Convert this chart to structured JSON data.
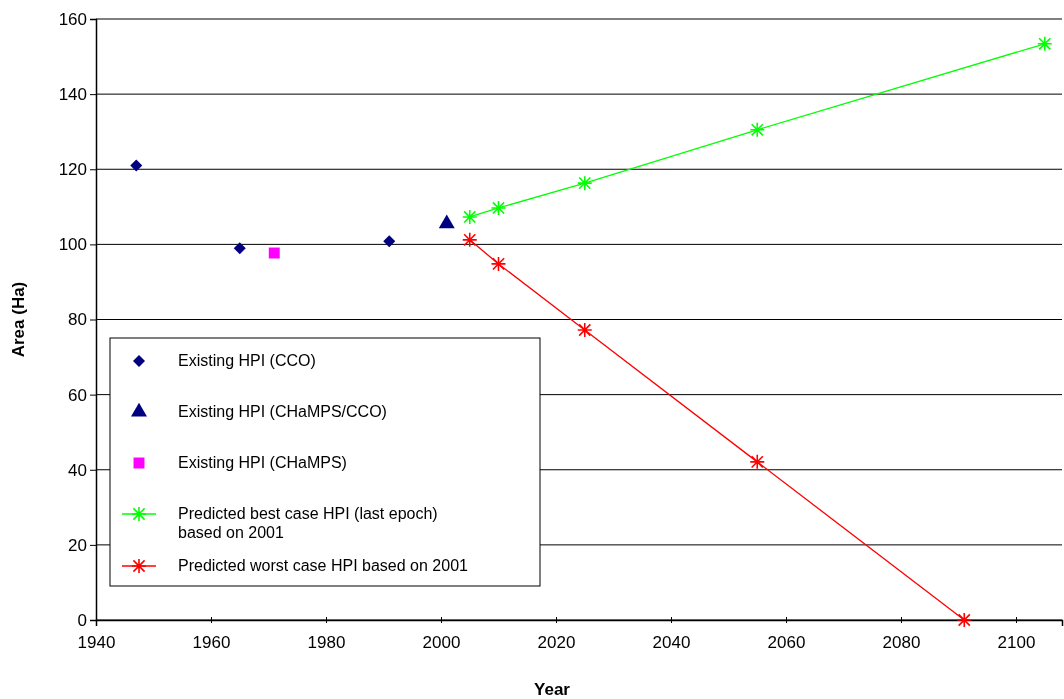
{
  "chart_data": {
    "type": "scatter",
    "xlabel": "Year",
    "ylabel": "Area (Ha)",
    "xlim": [
      1940,
      2108
    ],
    "xticks": [
      1940,
      1960,
      1980,
      2000,
      2020,
      2040,
      2060,
      2080,
      2100
    ],
    "ylim": [
      0,
      160
    ],
    "yticks": [
      0,
      20,
      40,
      60,
      80,
      100,
      120,
      140,
      160
    ],
    "grid": "y",
    "legend": "bottom left",
    "series": [
      {
        "name": "Existing HPI (CCO)",
        "marker": "diamond",
        "color": "#000080",
        "x": [
          1947,
          1965,
          1991
        ],
        "values": [
          121,
          99,
          100.8
        ]
      },
      {
        "name": "Existing HPI (CHaMPS/CCO)",
        "marker": "triangle",
        "color": "#000080",
        "x": [
          2001
        ],
        "values": [
          105.5
        ]
      },
      {
        "name": "Existing HPI (CHaMPS)",
        "marker": "square",
        "color": "#ff00ff",
        "x": [
          1971
        ],
        "values": [
          97.7
        ]
      },
      {
        "name": "Predicted best case HPI (last epoch) based on 2001",
        "type": "line",
        "marker": "cross",
        "color": "#00ff00",
        "x": [
          2005,
          2010,
          2025,
          2055,
          2105
        ],
        "values": [
          107.3,
          109.7,
          116.3,
          130.5,
          153.4
        ]
      },
      {
        "name": "Predicted worst case HPI based on 2001",
        "type": "line",
        "marker": "cross",
        "color": "#ff0000",
        "x": [
          2005,
          2010,
          2025,
          2055,
          2091
        ],
        "values": [
          101.2,
          94.8,
          77.2,
          42.1,
          0
        ]
      }
    ]
  }
}
